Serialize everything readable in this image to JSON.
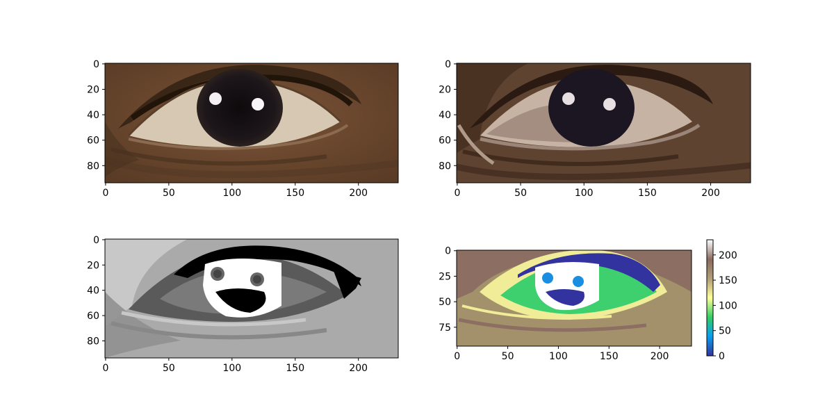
{
  "panels": [
    {
      "id": "original",
      "xticks": [
        "0",
        "50",
        "100",
        "150",
        "200"
      ],
      "yticks": [
        "0",
        "20",
        "40",
        "60",
        "80"
      ]
    },
    {
      "id": "posterized",
      "xticks": [
        "0",
        "50",
        "100",
        "150",
        "200"
      ],
      "yticks": [
        "0",
        "20",
        "40",
        "60",
        "80"
      ]
    },
    {
      "id": "gray",
      "xticks": [
        "0",
        "50",
        "100",
        "150",
        "200"
      ],
      "yticks": [
        "0",
        "20",
        "40",
        "60",
        "80"
      ]
    },
    {
      "id": "terrain",
      "xticks": [
        "0",
        "50",
        "100",
        "150",
        "200"
      ],
      "yticks": [
        "0",
        "25",
        "50",
        "75"
      ]
    }
  ],
  "colorbar": {
    "ticks": [
      "0",
      "50",
      "100",
      "150",
      "200"
    ],
    "colors": [
      "#333399",
      "#0a9ef0",
      "#33cc66",
      "#ffff99",
      "#b5a07a",
      "#8a6a5e",
      "#ffffff"
    ]
  },
  "image_colors": {
    "skin": "#6e4a2e",
    "skin_dark": "#3f2a1c",
    "sclera": "#d9cbb8",
    "iris": "#1a1418",
    "poster_bg": "#5e4330",
    "poster_light": "#c6b3a4",
    "poster_iris": "#1c1622",
    "gray_bg": "#aaaaaa",
    "gray_mid": "#7a7a7a",
    "gray_dark": "#555555",
    "terrain_bg": "#a3916b",
    "terrain_brown": "#8c6e62",
    "terrain_yellow": "#f0ec98",
    "terrain_green": "#3ed06e",
    "terrain_navy": "#3333a0",
    "terrain_blue": "#1a8ee0"
  }
}
